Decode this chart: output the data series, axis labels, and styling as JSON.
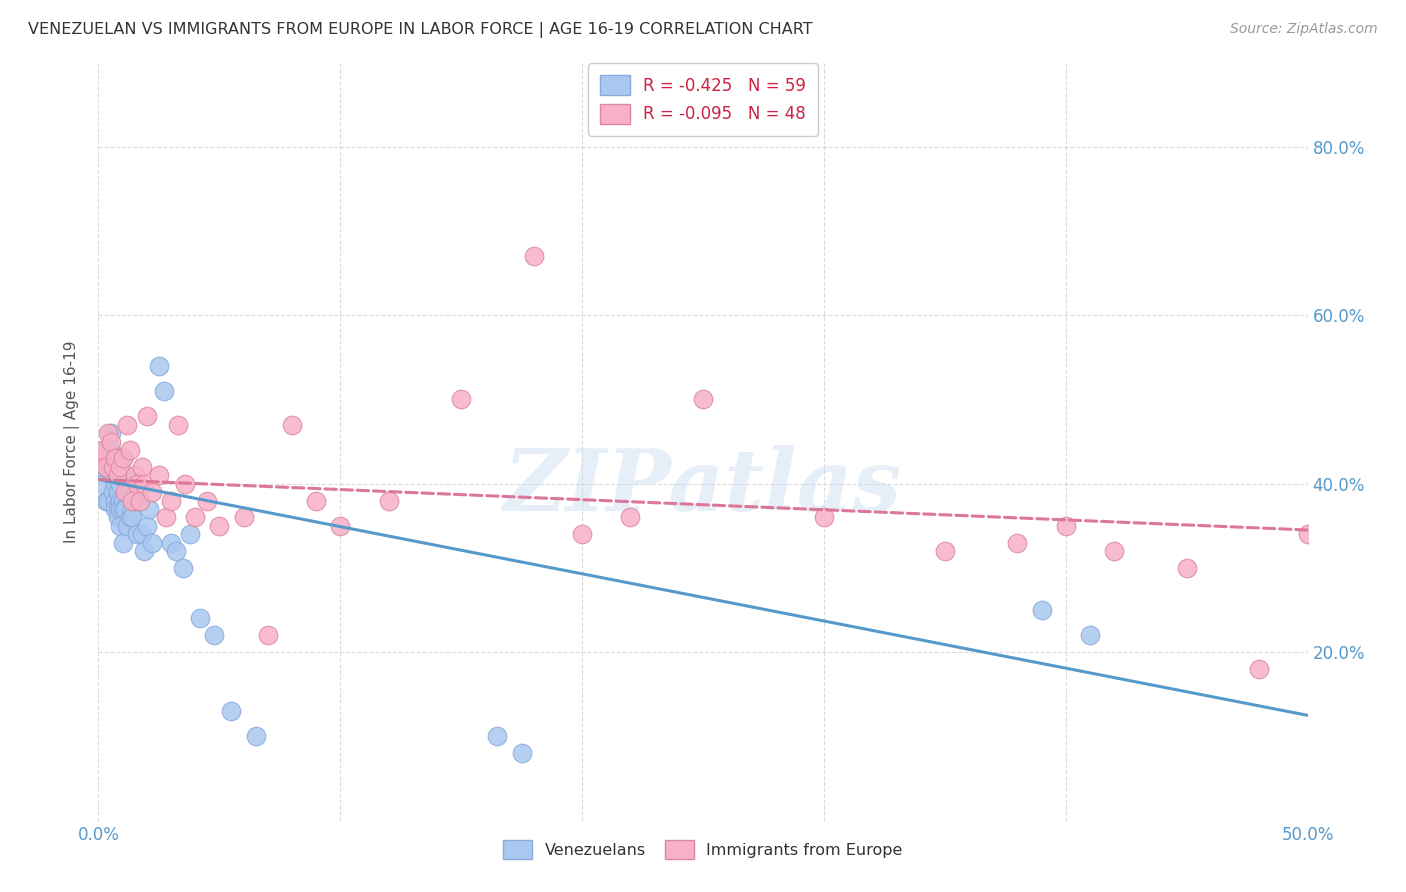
{
  "title": "VENEZUELAN VS IMMIGRANTS FROM EUROPE IN LABOR FORCE | AGE 16-19 CORRELATION CHART",
  "source": "Source: ZipAtlas.com",
  "ylabel": "In Labor Force | Age 16-19",
  "xlim": [
    0.0,
    0.5
  ],
  "ylim": [
    0.0,
    0.9
  ],
  "xticks": [
    0.0,
    0.1,
    0.2,
    0.3,
    0.4,
    0.5
  ],
  "yticks": [
    0.2,
    0.4,
    0.6,
    0.8
  ],
  "ytick_labels_right": [
    "20.0%",
    "40.0%",
    "60.0%",
    "80.0%"
  ],
  "xtick_labels": [
    "0.0%",
    "",
    "",
    "",
    "",
    "50.0%"
  ],
  "background_color": "#ffffff",
  "watermark": "ZIPatlas",
  "legend1_label": "R = -0.425   N = 59",
  "legend2_label": "R = -0.095   N = 48",
  "series1_color": "#aac8f0",
  "series2_color": "#f8b0c8",
  "line1_color": "#5599cc",
  "line2_color": "#dd7799",
  "grid_color": "#cccccc",
  "venezuelans_x": [
    0.001,
    0.002,
    0.002,
    0.003,
    0.003,
    0.004,
    0.004,
    0.005,
    0.005,
    0.005,
    0.006,
    0.006,
    0.006,
    0.007,
    0.007,
    0.007,
    0.007,
    0.008,
    0.008,
    0.008,
    0.008,
    0.009,
    0.009,
    0.009,
    0.009,
    0.01,
    0.01,
    0.01,
    0.01,
    0.011,
    0.011,
    0.012,
    0.012,
    0.013,
    0.013,
    0.014,
    0.014,
    0.015,
    0.016,
    0.017,
    0.018,
    0.019,
    0.02,
    0.021,
    0.022,
    0.025,
    0.027,
    0.03,
    0.032,
    0.035,
    0.038,
    0.042,
    0.048,
    0.055,
    0.065,
    0.165,
    0.175,
    0.39,
    0.41
  ],
  "venezuelans_y": [
    0.42,
    0.44,
    0.4,
    0.38,
    0.42,
    0.43,
    0.38,
    0.44,
    0.41,
    0.46,
    0.42,
    0.41,
    0.39,
    0.4,
    0.38,
    0.37,
    0.43,
    0.41,
    0.39,
    0.37,
    0.36,
    0.4,
    0.38,
    0.37,
    0.35,
    0.38,
    0.33,
    0.43,
    0.37,
    0.41,
    0.37,
    0.39,
    0.35,
    0.39,
    0.36,
    0.37,
    0.36,
    0.38,
    0.34,
    0.38,
    0.34,
    0.32,
    0.35,
    0.37,
    0.33,
    0.54,
    0.51,
    0.33,
    0.32,
    0.3,
    0.34,
    0.24,
    0.22,
    0.13,
    0.1,
    0.1,
    0.08,
    0.25,
    0.22
  ],
  "europe_x": [
    0.001,
    0.002,
    0.003,
    0.004,
    0.005,
    0.006,
    0.007,
    0.008,
    0.009,
    0.01,
    0.011,
    0.012,
    0.013,
    0.014,
    0.015,
    0.016,
    0.017,
    0.018,
    0.019,
    0.02,
    0.022,
    0.025,
    0.028,
    0.03,
    0.033,
    0.036,
    0.04,
    0.045,
    0.05,
    0.06,
    0.07,
    0.08,
    0.09,
    0.1,
    0.12,
    0.15,
    0.18,
    0.2,
    0.22,
    0.25,
    0.3,
    0.35,
    0.38,
    0.4,
    0.42,
    0.45,
    0.48,
    0.5
  ],
  "europe_y": [
    0.43,
    0.44,
    0.42,
    0.46,
    0.45,
    0.42,
    0.43,
    0.41,
    0.42,
    0.43,
    0.39,
    0.47,
    0.44,
    0.38,
    0.41,
    0.4,
    0.38,
    0.42,
    0.4,
    0.48,
    0.39,
    0.41,
    0.36,
    0.38,
    0.47,
    0.4,
    0.36,
    0.38,
    0.35,
    0.36,
    0.22,
    0.47,
    0.38,
    0.35,
    0.38,
    0.5,
    0.67,
    0.34,
    0.36,
    0.5,
    0.36,
    0.32,
    0.33,
    0.35,
    0.32,
    0.3,
    0.18,
    0.34
  ],
  "line1_x0": 0.0,
  "line1_y0": 0.405,
  "line1_x1": 0.5,
  "line1_y1": 0.125,
  "line2_x0": 0.0,
  "line2_y0": 0.405,
  "line2_x1": 0.5,
  "line2_y1": 0.345
}
